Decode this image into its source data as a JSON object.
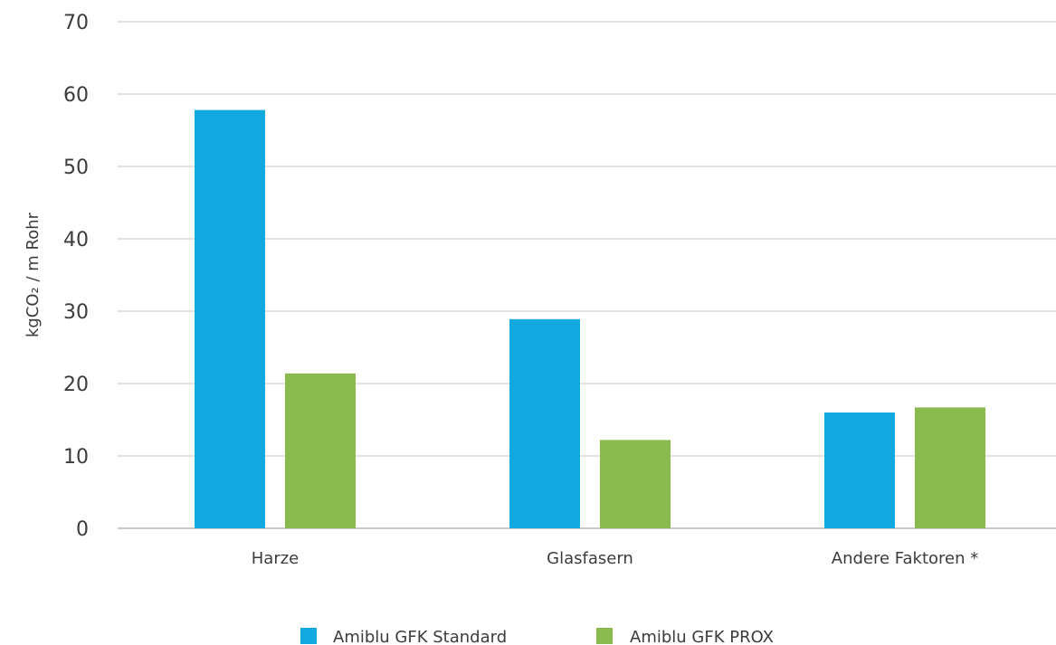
{
  "chart_data": {
    "type": "bar",
    "categories": [
      "Harze",
      "Glasfasern",
      "Andere Faktoren *"
    ],
    "series": [
      {
        "name": "Amiblu GFK Standard",
        "values": [
          57.8,
          28.9,
          16.0
        ],
        "color": "#12a8e0"
      },
      {
        "name": "Amiblu GFK PROX",
        "values": [
          21.4,
          12.2,
          16.7
        ],
        "color": "#89b94f"
      }
    ],
    "ylabel": "kgCO₂ / m Rohr",
    "ylim": [
      0,
      70
    ],
    "yticks": [
      0,
      10,
      20,
      30,
      40,
      50,
      60,
      70
    ],
    "grid": true,
    "legend_position": "bottom"
  }
}
